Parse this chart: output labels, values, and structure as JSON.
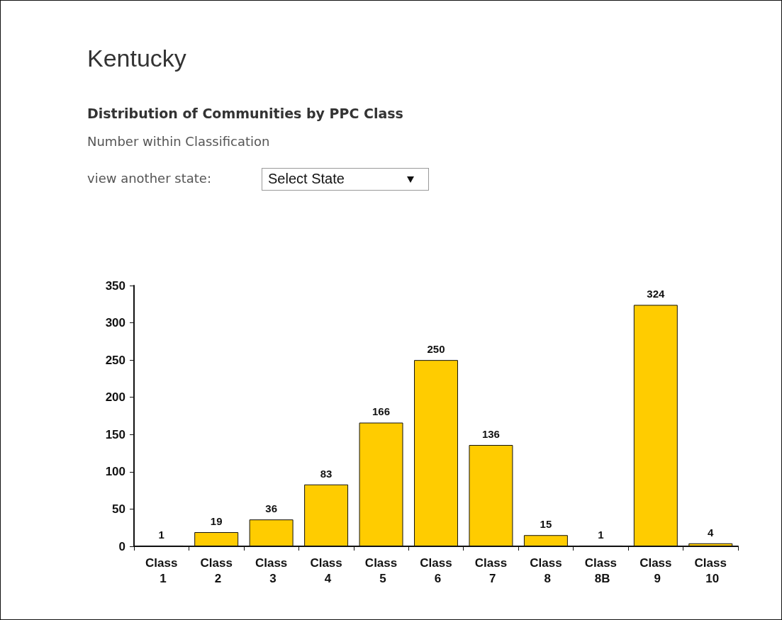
{
  "chart_data": {
    "type": "bar",
    "title": "Kentucky",
    "subtitle": "Distribution of Communities by PPC Class",
    "annotations": [
      "Number within Classification",
      "view another state:",
      "Select State"
    ],
    "categories": [
      "Class 1",
      "Class 2",
      "Class 3",
      "Class 4",
      "Class 5",
      "Class 6",
      "Class 7",
      "Class 8",
      "Class 8B",
      "Class 9",
      "Class 10"
    ],
    "values": [
      1,
      19,
      36,
      83,
      166,
      250,
      136,
      15,
      1,
      324,
      4
    ],
    "color": "#ffcc00",
    "ylim": [
      0,
      350
    ],
    "yticks": [
      0,
      50,
      100,
      150,
      200,
      250,
      300,
      350
    ],
    "grid": false,
    "data_labels": true
  }
}
